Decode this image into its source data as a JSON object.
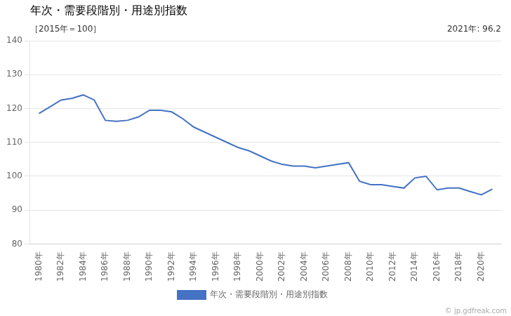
{
  "chart_data": {
    "type": "line",
    "title": "年次・需要段階別・用途別指数",
    "subtitle": "［2015年＝100］",
    "annotations": [
      {
        "text": "2021年: 96.2"
      },
      {
        "text": "© jp.gdfreak.com"
      }
    ],
    "x": [
      1980,
      1981,
      1982,
      1983,
      1984,
      1985,
      1986,
      1987,
      1988,
      1989,
      1990,
      1991,
      1992,
      1993,
      1994,
      1995,
      1996,
      1997,
      1998,
      1999,
      2000,
      2001,
      2002,
      2003,
      2004,
      2005,
      2006,
      2007,
      2008,
      2009,
      2010,
      2011,
      2012,
      2013,
      2014,
      2015,
      2016,
      2017,
      2018,
      2019,
      2020,
      2021
    ],
    "series": [
      {
        "name": "年次・需要段階別・用途別指数",
        "color": "#4472c4",
        "marker": "none",
        "values": [
          118.5,
          120.5,
          122.5,
          123.0,
          124.0,
          122.5,
          116.5,
          116.2,
          116.5,
          117.5,
          119.5,
          119.5,
          119.0,
          117.0,
          114.5,
          113.0,
          111.5,
          110.0,
          108.5,
          107.5,
          106.0,
          104.5,
          103.5,
          103.0,
          103.0,
          102.5,
          103.0,
          103.5,
          104.0,
          98.5,
          97.5,
          97.5,
          97.0,
          96.5,
          99.5,
          100.0,
          96.0,
          96.5,
          96.5,
          95.5,
          94.5,
          96.2
        ]
      }
    ],
    "xlim": [
      1979.2,
      2021.8
    ],
    "xticks": [
      {
        "value": 1980,
        "label": "1980年"
      },
      {
        "value": 1982,
        "label": "1982年"
      },
      {
        "value": 1984,
        "label": "1984年"
      },
      {
        "value": 1986,
        "label": "1986年"
      },
      {
        "value": 1988,
        "label": "1988年"
      },
      {
        "value": 1990,
        "label": "1990年"
      },
      {
        "value": 1992,
        "label": "1992年"
      },
      {
        "value": 1994,
        "label": "1994年"
      },
      {
        "value": 1996,
        "label": "1996年"
      },
      {
        "value": 1998,
        "label": "1998年"
      },
      {
        "value": 2000,
        "label": "2000年"
      },
      {
        "value": 2002,
        "label": "2002年"
      },
      {
        "value": 2004,
        "label": "2004年"
      },
      {
        "value": 2006,
        "label": "2006年"
      },
      {
        "value": 2008,
        "label": "2008年"
      },
      {
        "value": 2010,
        "label": "2010年"
      },
      {
        "value": 2012,
        "label": "2012年"
      },
      {
        "value": 2014,
        "label": "2014年"
      },
      {
        "value": 2016,
        "label": "2016年"
      },
      {
        "value": 2018,
        "label": "2018年"
      },
      {
        "value": 2020,
        "label": "2020年"
      }
    ],
    "ylim": [
      80,
      140
    ],
    "yticks": [
      80,
      90,
      100,
      110,
      120,
      130,
      140
    ],
    "grid": true,
    "legend": "bottom"
  }
}
